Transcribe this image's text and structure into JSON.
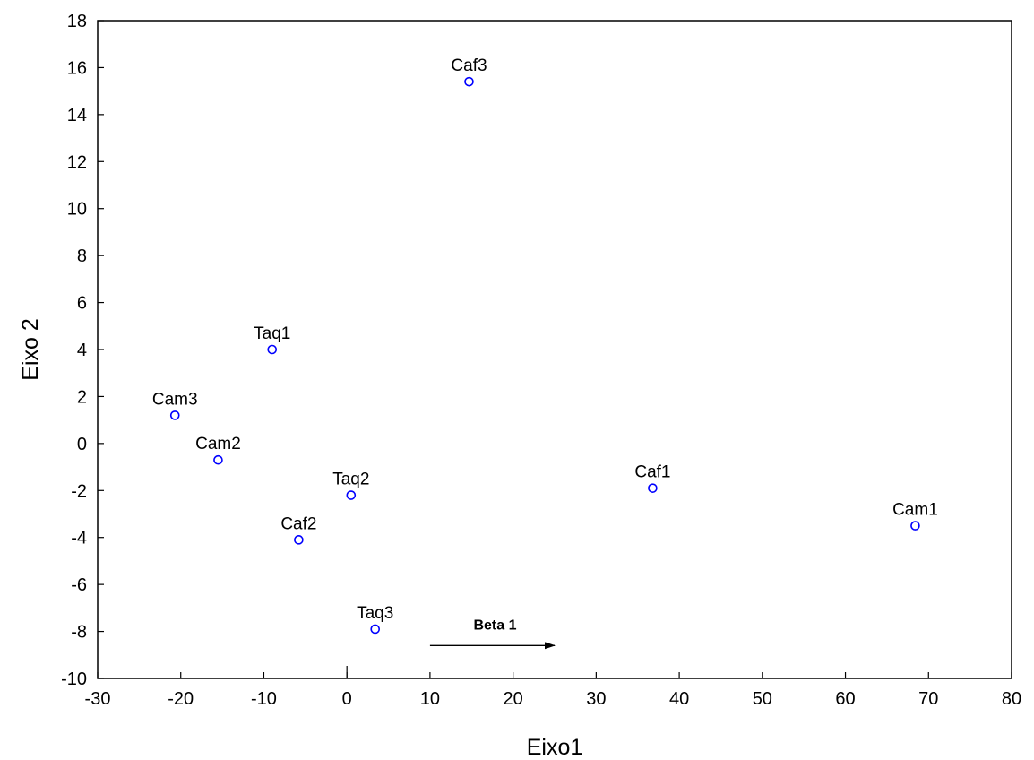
{
  "chart_data": {
    "type": "scatter",
    "title": "",
    "xlabel": "Eixo1",
    "ylabel": "Eixo 2",
    "xlim": [
      -30,
      80
    ],
    "ylim": [
      -10,
      18
    ],
    "x_ticks": [
      -30,
      -20,
      -10,
      0,
      10,
      20,
      30,
      40,
      50,
      60,
      70,
      80
    ],
    "y_ticks": [
      -10,
      -8,
      -6,
      -4,
      -2,
      0,
      2,
      4,
      6,
      8,
      10,
      12,
      14,
      16,
      18
    ],
    "grid": false,
    "marker_color": "#0000ff",
    "points": [
      {
        "label": "Caf3",
        "x": 14.7,
        "y": 15.4
      },
      {
        "label": "Taq1",
        "x": -9.0,
        "y": 4.0
      },
      {
        "label": "Cam3",
        "x": -20.7,
        "y": 1.2
      },
      {
        "label": "Cam2",
        "x": -15.5,
        "y": -0.7
      },
      {
        "label": "Taq2",
        "x": 0.5,
        "y": -2.2
      },
      {
        "label": "Caf2",
        "x": -5.8,
        "y": -4.1
      },
      {
        "label": "Taq3",
        "x": 3.4,
        "y": -7.9
      },
      {
        "label": "Caf1",
        "x": 36.8,
        "y": -1.9
      },
      {
        "label": "Cam1",
        "x": 68.4,
        "y": -3.5
      }
    ],
    "annotation": {
      "text": "Beta 1",
      "arrow_from": {
        "x": 10,
        "y": -8.6
      },
      "arrow_to": {
        "x": 25,
        "y": -8.6
      }
    }
  }
}
